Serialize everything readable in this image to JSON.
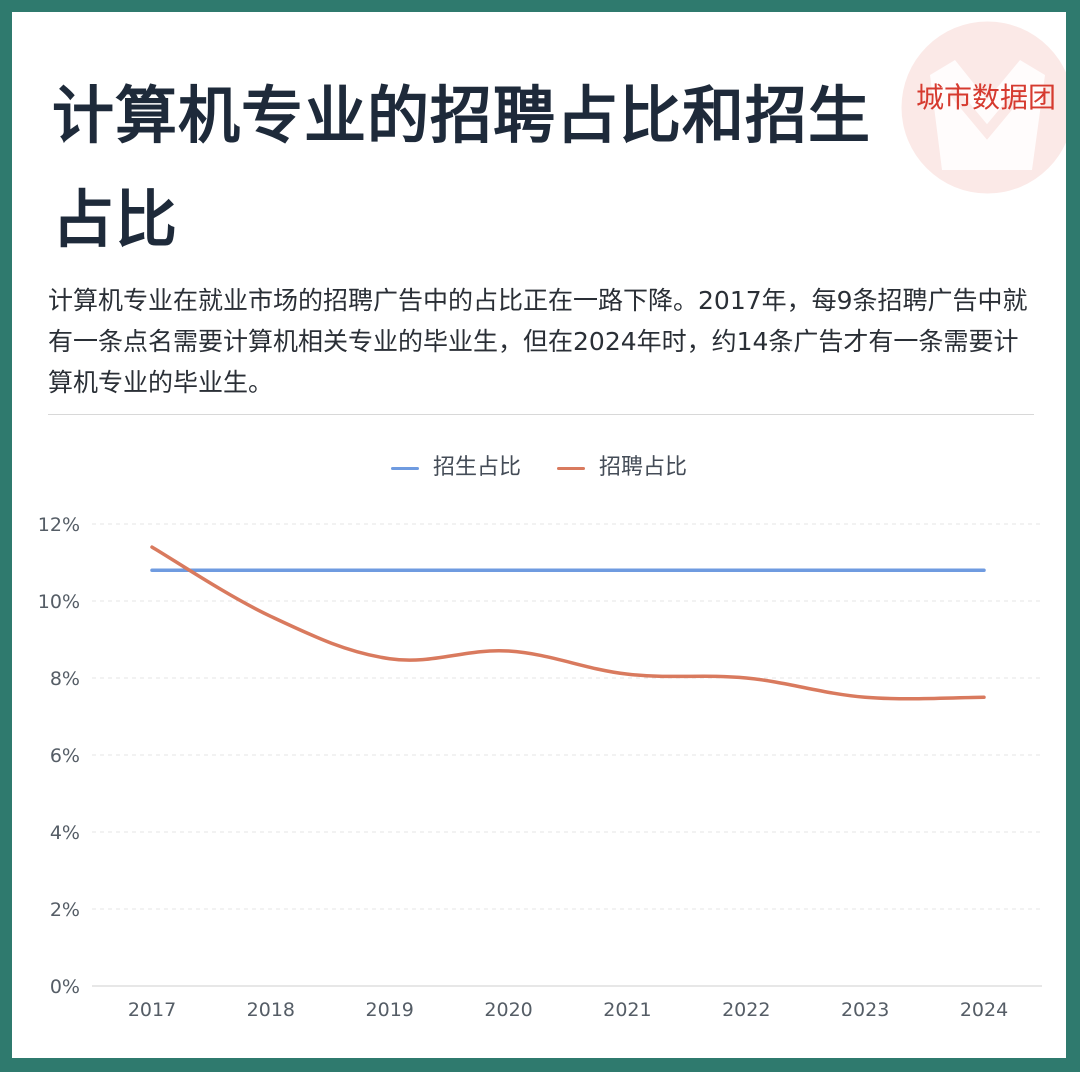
{
  "logo_text": "城市数据团",
  "title": "计算机专业的招聘占比和招生占比",
  "description": "计算机专业在就业市场的招聘广告中的占比正在一路下降。2017年，每9条招聘广告中就有一条点名需要计算机相关专业的毕业生，但在2024年时，约14条广告才有一条需要计算机专业的毕业生。",
  "colors": {
    "enrollment": "#6f9be0",
    "recruitment": "#d97a5e",
    "logo": "#d63a2f"
  },
  "chart_data": {
    "type": "line",
    "x": [
      "2017",
      "2018",
      "2019",
      "2020",
      "2021",
      "2022",
      "2023",
      "2024"
    ],
    "series": [
      {
        "name": "招生占比",
        "values": [
          10.8,
          10.8,
          10.8,
          10.8,
          10.8,
          10.8,
          10.8,
          10.8
        ]
      },
      {
        "name": "招聘占比",
        "values": [
          11.4,
          9.6,
          8.5,
          8.7,
          8.1,
          8.0,
          7.5,
          7.5
        ]
      }
    ],
    "y_ticks": [
      "0%",
      "2%",
      "4%",
      "6%",
      "8%",
      "10%",
      "12%"
    ],
    "ylim": [
      0,
      12
    ],
    "grid": true,
    "legend": "top-center"
  }
}
